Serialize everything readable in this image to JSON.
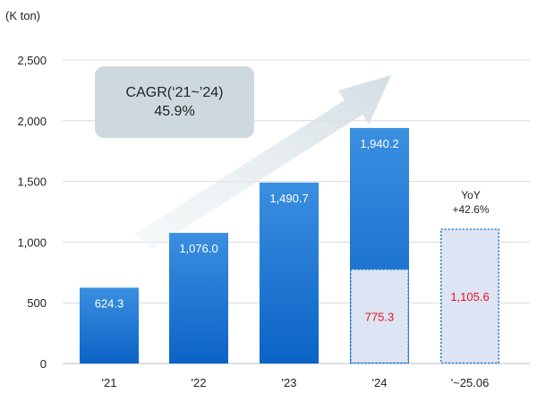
{
  "chart_data": {
    "type": "bar",
    "unit_label": "(K ton)",
    "categories": [
      "'21",
      "'22",
      "'23",
      "'24",
      "'~25.06"
    ],
    "values": [
      624.3,
      1076.0,
      1490.7,
      1940.2,
      null
    ],
    "value_labels": [
      "624.3",
      "1,076.0",
      "1,490.7",
      "1,940.2",
      ""
    ],
    "h1_values": [
      null,
      null,
      null,
      775.3,
      1105.6
    ],
    "h1_labels": [
      "",
      "",
      "",
      "775.3",
      "1,105.6"
    ],
    "ylim": [
      0,
      2500
    ],
    "y_ticks": [
      0,
      500,
      1000,
      1500,
      2000,
      2500
    ],
    "y_tick_labels": [
      "0",
      "500",
      "1,000",
      "1,500",
      "2,000",
      "2,500"
    ],
    "grid": true,
    "annotations": {
      "cagr_line1": "CAGR(‘21~’24)",
      "cagr_line2": "45.9%",
      "yoy_line1": "YoY",
      "yoy_line2": "+42.6%"
    },
    "colors": {
      "bar_top": "#3a8fe0",
      "bar_bottom": "#0b63c6",
      "h1_fill": "#dde4f3",
      "h1_border": "#1a78c8",
      "red": "#e8121f",
      "grid": "#d9d9d9",
      "cagr_box": "#ced9df",
      "arrow": "#dce6ea"
    }
  }
}
